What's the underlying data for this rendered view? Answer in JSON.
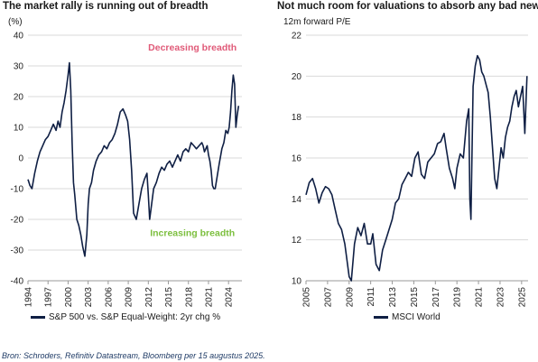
{
  "source": "Bron: Schroders, Refinitiv Datastream, Bloomberg per 15 augustus 2025.",
  "colors": {
    "line": "#0f1f44",
    "decreasing": "#e05a78",
    "increasing": "#7cbf3e",
    "grid": "#d9d9d9",
    "axis": "#9a9a9a"
  },
  "chart_data": [
    {
      "type": "line",
      "title": "The market rally is running out of breadth",
      "unit_label": "(%)",
      "ylim": [
        -40,
        40
      ],
      "yticks": [
        40,
        30,
        20,
        10,
        0,
        -10,
        -20,
        -30,
        -40
      ],
      "xlim": [
        1994,
        2026
      ],
      "xticks": [
        1994,
        1997,
        2000,
        2003,
        2006,
        2009,
        2012,
        2015,
        2018,
        2021,
        2024
      ],
      "grid": "horizontal",
      "annotations": [
        {
          "text": "Decreasing breadth",
          "x": 2018.6,
          "y": 35,
          "color_key": "decreasing"
        },
        {
          "text": "Increasing breadth",
          "x": 2018.6,
          "y": -25.5,
          "color_key": "increasing"
        }
      ],
      "legend": "bottom",
      "series": [
        {
          "name": "S&P 500 vs. S&P Equal-Weight: 2yr chg %",
          "x": [
            1994.0,
            1994.3,
            1994.6,
            1995.0,
            1995.4,
            1995.8,
            1996.2,
            1996.6,
            1997.0,
            1997.4,
            1997.8,
            1998.2,
            1998.5,
            1998.8,
            1999.1,
            1999.4,
            1999.7,
            2000.0,
            2000.2,
            2000.4,
            2000.6,
            2000.8,
            2001.0,
            2001.3,
            2001.6,
            2001.9,
            2002.2,
            2002.5,
            2002.8,
            2003.0,
            2003.2,
            2003.5,
            2003.8,
            2004.2,
            2004.6,
            2005.0,
            2005.4,
            2005.8,
            2006.2,
            2006.6,
            2007.0,
            2007.4,
            2007.8,
            2008.2,
            2008.6,
            2008.9,
            2009.2,
            2009.5,
            2009.8,
            2010.2,
            2010.6,
            2011.0,
            2011.4,
            2011.8,
            2012.0,
            2012.2,
            2012.5,
            2012.8,
            2013.2,
            2013.6,
            2014.0,
            2014.4,
            2014.8,
            2015.2,
            2015.6,
            2016.0,
            2016.4,
            2016.8,
            2017.2,
            2017.6,
            2018.0,
            2018.4,
            2018.8,
            2019.2,
            2019.6,
            2020.0,
            2020.2,
            2020.4,
            2020.6,
            2020.8,
            2021.0,
            2021.2,
            2021.4,
            2021.6,
            2021.8,
            2022.0,
            2022.3,
            2022.6,
            2023.0,
            2023.3,
            2023.6,
            2023.9,
            2024.1,
            2024.3,
            2024.5,
            2024.7,
            2024.9,
            2025.1,
            2025.3,
            2025.5
          ],
          "values": [
            -7,
            -9,
            -10,
            -5,
            -1,
            2,
            4,
            6,
            7,
            9,
            11,
            9,
            12,
            10,
            15,
            18,
            22,
            27,
            31,
            22,
            5,
            -8,
            -12,
            -20,
            -22,
            -25,
            -29,
            -32,
            -25,
            -15,
            -10,
            -8,
            -4,
            -1,
            1,
            2,
            4,
            3,
            5,
            6,
            8,
            11,
            15,
            16,
            14,
            12,
            6,
            -4,
            -18,
            -20,
            -15,
            -10,
            -7,
            -5,
            -12,
            -20,
            -15,
            -10,
            -8,
            -5,
            -3,
            -4,
            -2,
            -1,
            -3,
            -1,
            1,
            -1,
            2,
            3,
            2,
            5,
            4,
            3,
            4,
            5,
            4,
            2,
            3,
            4,
            1,
            -1,
            -4,
            -9,
            -10,
            -10,
            -6,
            -2,
            3,
            5,
            9,
            8,
            10,
            15,
            22,
            27,
            24,
            10,
            14,
            17
          ]
        }
      ]
    },
    {
      "type": "line",
      "title": "Not much room for valuations to absorb any bad news",
      "unit_label": "12m forward P/E",
      "ylim": [
        10,
        22
      ],
      "yticks": [
        22,
        20,
        18,
        16,
        14,
        12,
        10
      ],
      "xlim": [
        2005,
        2025.6
      ],
      "xticks": [
        2005,
        2007,
        2009,
        2011,
        2013,
        2015,
        2017,
        2019,
        2021,
        2023,
        2025
      ],
      "grid": "horizontal",
      "legend": "bottom",
      "series": [
        {
          "name": "MSCI World",
          "x": [
            2005.0,
            2005.3,
            2005.6,
            2005.9,
            2006.2,
            2006.5,
            2006.8,
            2007.1,
            2007.4,
            2007.7,
            2008.0,
            2008.3,
            2008.6,
            2008.8,
            2009.0,
            2009.2,
            2009.5,
            2009.8,
            2010.1,
            2010.4,
            2010.7,
            2011.0,
            2011.2,
            2011.5,
            2011.8,
            2012.1,
            2012.4,
            2012.7,
            2013.0,
            2013.3,
            2013.6,
            2013.9,
            2014.2,
            2014.5,
            2014.8,
            2015.1,
            2015.4,
            2015.7,
            2016.0,
            2016.3,
            2016.6,
            2016.9,
            2017.2,
            2017.5,
            2017.8,
            2018.0,
            2018.3,
            2018.6,
            2018.8,
            2019.0,
            2019.3,
            2019.6,
            2019.9,
            2020.1,
            2020.2,
            2020.3,
            2020.5,
            2020.7,
            2020.9,
            2021.1,
            2021.3,
            2021.5,
            2021.7,
            2021.9,
            2022.1,
            2022.3,
            2022.5,
            2022.7,
            2022.9,
            2023.1,
            2023.3,
            2023.5,
            2023.7,
            2023.9,
            2024.1,
            2024.3,
            2024.5,
            2024.7,
            2024.9,
            2025.1,
            2025.3,
            2025.5
          ],
          "values": [
            14.2,
            14.8,
            15.0,
            14.5,
            13.8,
            14.3,
            14.6,
            14.5,
            14.2,
            13.5,
            12.8,
            12.5,
            11.8,
            11.0,
            10.2,
            10.0,
            11.8,
            12.6,
            12.2,
            12.8,
            11.8,
            11.8,
            12.3,
            10.8,
            10.5,
            11.5,
            12.0,
            12.5,
            13.0,
            13.8,
            14.0,
            14.7,
            15.0,
            15.3,
            15.1,
            16.0,
            16.3,
            15.2,
            15.0,
            15.8,
            16.0,
            16.2,
            16.7,
            16.8,
            17.2,
            16.5,
            15.5,
            15.0,
            14.5,
            15.5,
            16.2,
            16.0,
            17.8,
            18.4,
            14.0,
            13.0,
            19.5,
            20.5,
            21.0,
            20.8,
            20.2,
            20.0,
            19.6,
            19.2,
            18.0,
            16.5,
            15.0,
            14.5,
            15.5,
            16.5,
            16.0,
            17.0,
            17.5,
            17.8,
            18.5,
            19.0,
            19.3,
            18.5,
            19.0,
            19.5,
            17.2,
            20.0
          ]
        }
      ]
    }
  ]
}
